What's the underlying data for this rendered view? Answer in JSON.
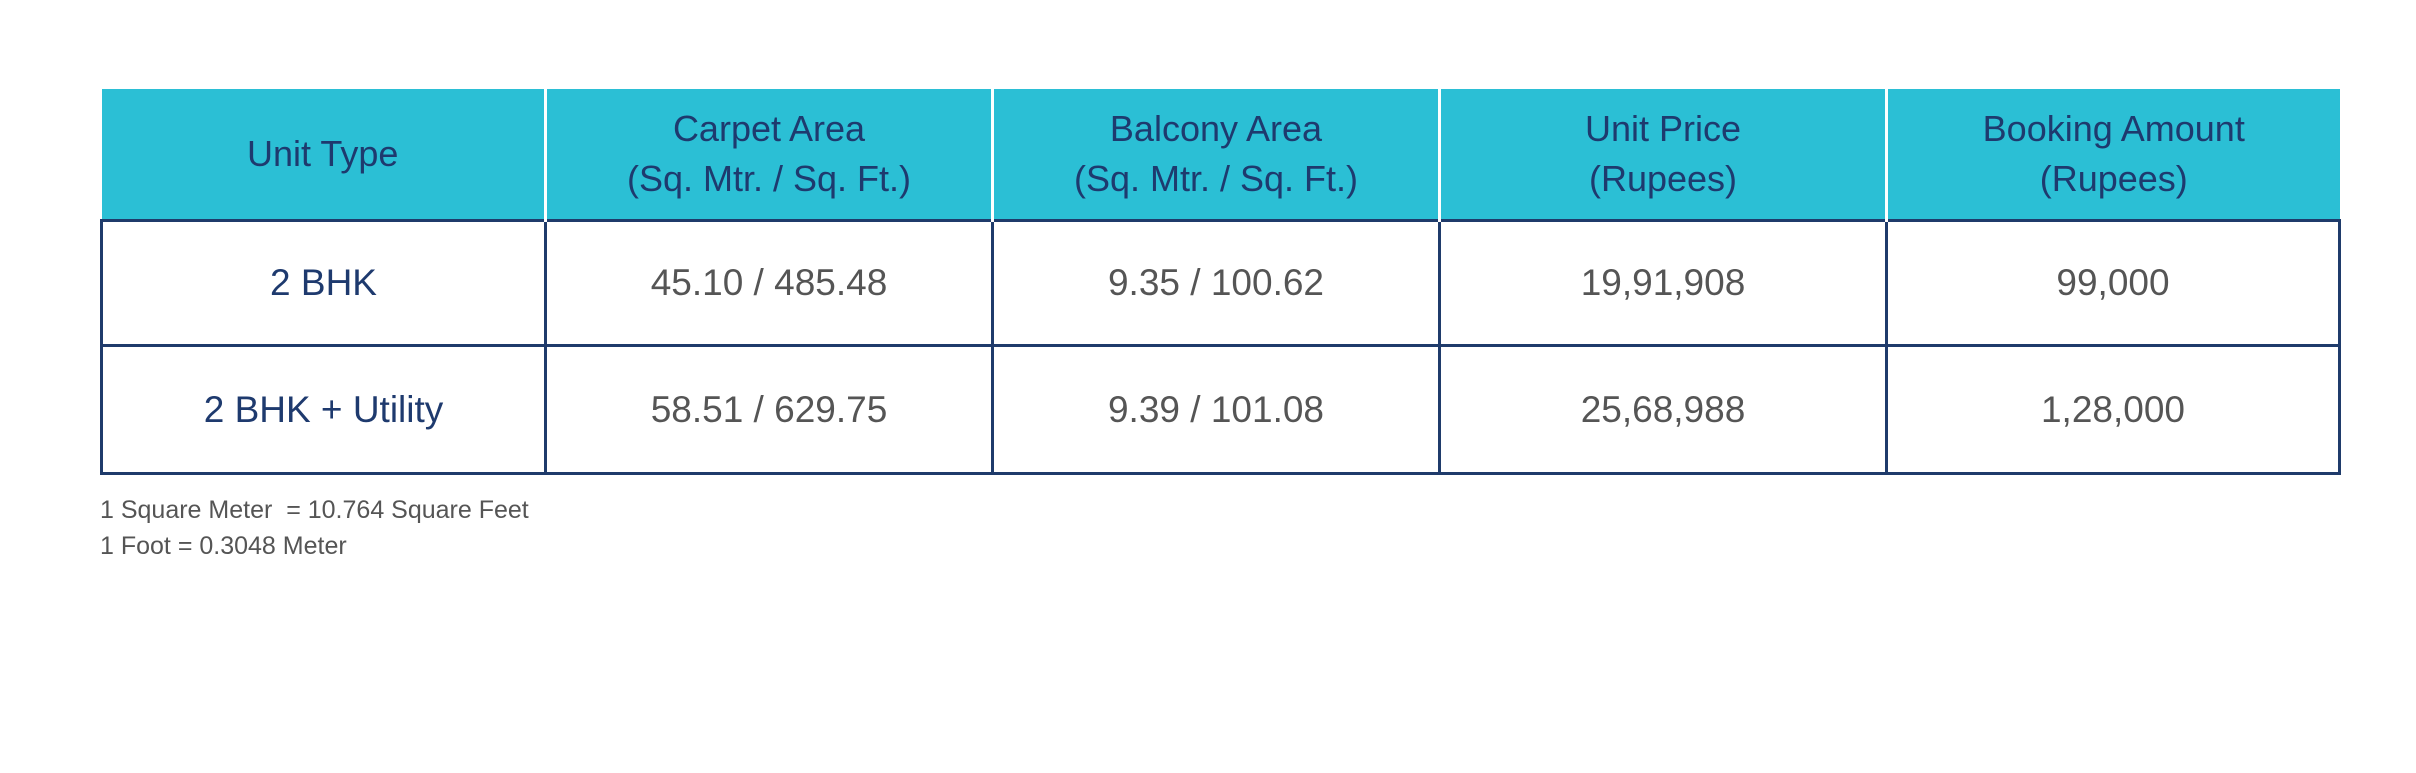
{
  "table": {
    "header": [
      [
        "Unit Type"
      ],
      [
        "Carpet Area",
        "(Sq. Mtr. / Sq. Ft.)"
      ],
      [
        "Balcony Area",
        "(Sq. Mtr. / Sq. Ft.)"
      ],
      [
        "Unit Price",
        "(Rupees)"
      ],
      [
        "Booking Amount",
        "(Rupees)"
      ]
    ],
    "rows": [
      [
        "2 BHK",
        "45.10 / 485.48",
        "9.35 / 100.62",
        "19,91,908",
        "99,000"
      ],
      [
        "2 BHK + Utility",
        "58.51 / 629.75",
        "9.39 / 101.08",
        "25,68,988",
        "1,28,000"
      ]
    ]
  },
  "notes": [
    "1 Square Meter  = 10.764 Square Feet",
    "1 Foot = 0.3048 Meter"
  ]
}
